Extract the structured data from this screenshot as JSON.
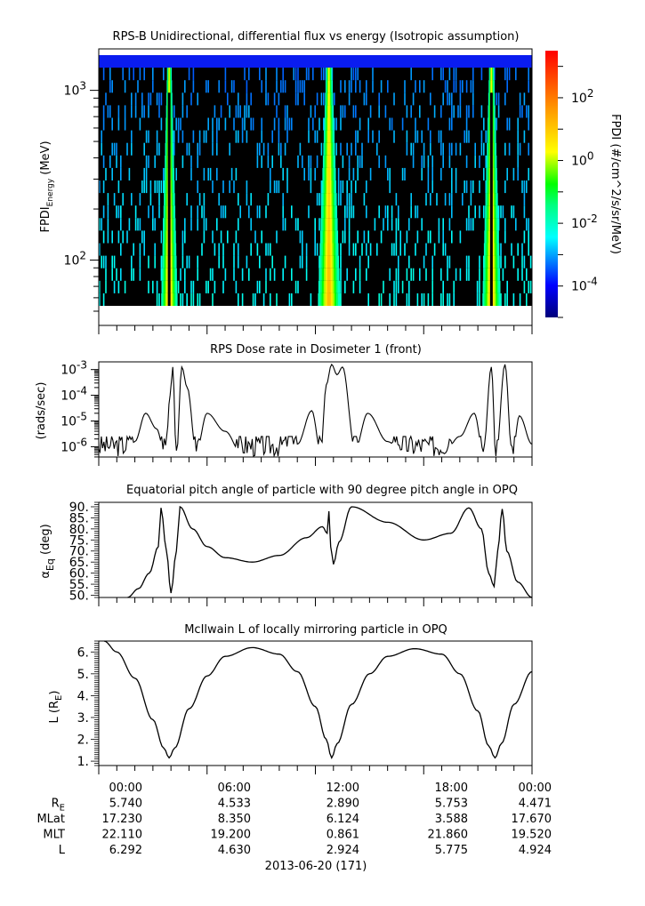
{
  "chart_data": [
    {
      "type": "heatmap",
      "title": "RPS-B  Unidirectional, differential flux vs energy (Isotropic assumption)",
      "ylabel_main": "FPDI",
      "ylabel_sub": "Energy",
      "ylabel_unit": " (MeV)",
      "yscale": "log",
      "ylim": [
        50,
        1500
      ],
      "yticks": [
        {
          "base": "10",
          "exp": "3",
          "value": 1000
        },
        {
          "base": "10",
          "exp": "2",
          "value": 100
        }
      ],
      "xlim_hours": [
        0,
        24
      ],
      "colorbar": {
        "label": "FPDI (#/cm^2/s/sr/MeV)",
        "scale": "log",
        "range_exp": [
          -5,
          3.5
        ],
        "ticks": [
          {
            "base": "10",
            "exp": "2"
          },
          {
            "base": "10",
            "exp": "0"
          },
          {
            "base": "10",
            "exp": "-2"
          },
          {
            "base": "10",
            "exp": "-4"
          }
        ]
      },
      "bright_bands_hours": [
        [
          3.5,
          4.3
        ],
        [
          12.2,
          13.3
        ],
        [
          21.3,
          22.2
        ]
      ],
      "energy_bins": 20
    },
    {
      "type": "line",
      "title": "RPS  Dose rate in Dosimeter 1 (front)",
      "ylabel": "(rads/sec)",
      "yscale": "log",
      "ylim_exp": [
        -6.4,
        -2.7
      ],
      "yticks": [
        {
          "base": "10",
          "exp": "-3"
        },
        {
          "base": "10",
          "exp": "-4"
        },
        {
          "base": "10",
          "exp": "-5"
        },
        {
          "base": "10",
          "exp": "-6"
        }
      ],
      "x_hours": [
        0,
        1.5,
        2.0,
        2.6,
        3.2,
        3.7,
        3.95,
        4.1,
        4.3,
        4.6,
        4.9,
        5.4,
        6.0,
        7.0,
        8.0,
        10.0,
        11.0,
        11.8,
        12.3,
        12.6,
        12.9,
        13.2,
        13.5,
        14.2,
        14.9,
        16.0,
        17.0,
        19.0,
        20.0,
        20.8,
        21.3,
        21.75,
        22.0,
        22.5,
        22.9,
        23.3,
        24.0
      ],
      "y_exp": [
        -6.4,
        -6.4,
        -5.8,
        -4.7,
        -5.3,
        -6.4,
        -4.0,
        -2.9,
        -6.4,
        -2.9,
        -3.7,
        -6.2,
        -4.7,
        -5.4,
        -6.4,
        -6.4,
        -5.9,
        -4.6,
        -6.2,
        -3.6,
        -2.8,
        -3.2,
        -2.9,
        -6.1,
        -4.7,
        -5.8,
        -6.4,
        -6.4,
        -5.6,
        -4.7,
        -6.2,
        -2.9,
        -6.4,
        -2.8,
        -6.4,
        -4.8,
        -5.9
      ]
    },
    {
      "type": "line",
      "title": "Equatorial pitch angle of particle with 90 degree pitch angle in OPQ",
      "ylabel_main": "α",
      "ylabel_sub": "Eq",
      "ylabel_unit": " (deg)",
      "ylim": [
        49,
        92
      ],
      "yticks": [
        "90.",
        "85.",
        "80.",
        "75.",
        "70.",
        "65.",
        "60.",
        "55.",
        "50."
      ],
      "ytick_values": [
        90,
        85,
        80,
        75,
        70,
        65,
        60,
        55,
        50
      ],
      "x_hours": [
        1.6,
        2.2,
        2.8,
        3.3,
        3.45,
        3.75,
        4.0,
        4.3,
        4.5,
        5.2,
        6.0,
        7.0,
        8.5,
        10.0,
        11.5,
        12.4,
        12.65,
        12.75,
        12.85,
        13.0,
        13.3,
        14.0,
        16.0,
        18.0,
        19.5,
        20.5,
        21.2,
        21.6,
        21.9,
        22.1,
        22.35,
        22.6,
        23.2,
        24.0
      ],
      "y": [
        49,
        53,
        60,
        72,
        89.5,
        70,
        51,
        70,
        90,
        80,
        72,
        67,
        65,
        68,
        76,
        81,
        78,
        88,
        72,
        64,
        74,
        90,
        83,
        75,
        78,
        89.5,
        80,
        60,
        54,
        70,
        89,
        70,
        56,
        49
      ]
    },
    {
      "type": "line",
      "title": "McIlwain L of locally mirroring particle in OPQ",
      "ylabel_main": "L (R",
      "ylabel_sub": "E",
      "ylabel_unit": ")",
      "ylim": [
        0.8,
        6.5
      ],
      "yticks": [
        "6.",
        "5.",
        "4.",
        "3.",
        "2.",
        "1."
      ],
      "ytick_values": [
        6,
        5,
        4,
        3,
        2,
        1
      ],
      "x_hours": [
        0.3,
        1.0,
        2.0,
        3.0,
        3.6,
        3.9,
        4.2,
        5.0,
        6.0,
        7.0,
        8.5,
        10.0,
        11.0,
        12.0,
        12.6,
        12.9,
        13.2,
        14.0,
        15.0,
        16.0,
        17.5,
        19.0,
        20.0,
        21.0,
        21.6,
        21.95,
        22.3,
        23.0,
        24.0
      ],
      "y": [
        6.5,
        6.0,
        4.8,
        2.9,
        1.6,
        1.15,
        1.6,
        3.4,
        4.9,
        5.8,
        6.2,
        5.9,
        5.1,
        3.5,
        2.0,
        1.15,
        1.8,
        3.6,
        5.0,
        5.8,
        6.15,
        5.9,
        5.0,
        3.3,
        1.7,
        1.15,
        1.8,
        3.6,
        5.1
      ]
    }
  ],
  "x_axis": {
    "tick_labels": [
      "00:00",
      "06:00",
      "12:00",
      "18:00",
      "00:00"
    ],
    "tick_hours": [
      0,
      6,
      12,
      18,
      24
    ],
    "rows": [
      {
        "label_main": "R",
        "label_sub": "E",
        "values": [
          "5.740",
          "4.533",
          "2.890",
          "5.753",
          "4.471"
        ]
      },
      {
        "label_main": "MLat",
        "label_sub": "",
        "values": [
          "17.230",
          "8.350",
          "6.124",
          "3.588",
          "17.670"
        ]
      },
      {
        "label_main": "MLT",
        "label_sub": "",
        "values": [
          "22.110",
          "19.200",
          "0.861",
          "21.860",
          "19.520"
        ]
      },
      {
        "label_main": "L",
        "label_sub": "",
        "values": [
          "6.292",
          "4.630",
          "2.924",
          "5.775",
          "4.924"
        ]
      }
    ],
    "date_label": "2013-06-20 (171)"
  },
  "colors": {
    "axis": "#000000",
    "background": "#ffffff",
    "heatmap_bg": "#000000"
  }
}
